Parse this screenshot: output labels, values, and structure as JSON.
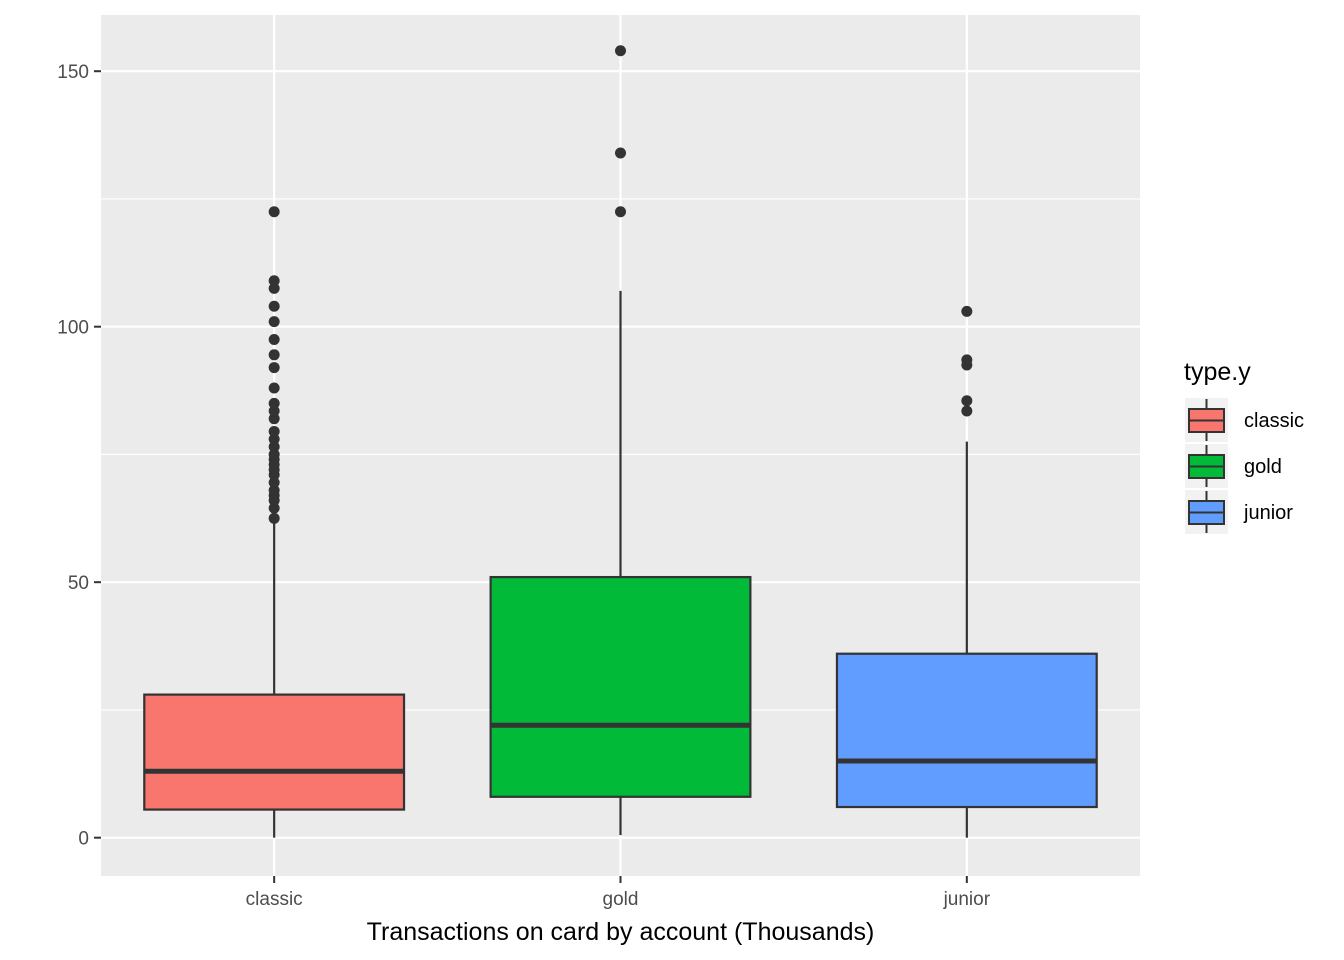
{
  "chart_data": {
    "type": "boxplot",
    "xlabel": "Transactions on card by account (Thousands)",
    "ylabel": "",
    "categories": [
      "classic",
      "gold",
      "junior"
    ],
    "ylim": [
      -7.5,
      161
    ],
    "yticks": [
      0,
      50,
      100,
      150
    ],
    "grid": true,
    "legend": {
      "title": "type.y",
      "placement": "right",
      "entries": [
        "classic",
        "gold",
        "junior"
      ]
    },
    "colors": {
      "classic": "#F8766D",
      "gold": "#00BA38",
      "junior": "#619CFF",
      "panel": "#EBEBEB",
      "box_outline": "#333333"
    },
    "series": [
      {
        "category": "classic",
        "min": 0,
        "q1": 5.5,
        "median": 13,
        "q3": 28,
        "max": 62,
        "outliers": [
          62.5,
          64.5,
          66,
          67,
          68,
          69.5,
          71,
          72,
          73,
          74,
          75,
          76.5,
          78,
          79.5,
          82,
          83.5,
          85,
          88,
          92,
          94.5,
          97.5,
          101,
          104,
          107.5,
          109,
          122.5
        ]
      },
      {
        "category": "gold",
        "min": 0.5,
        "q1": 8,
        "median": 22,
        "q3": 51,
        "max": 107,
        "outliers": [
          122.5,
          134,
          154
        ]
      },
      {
        "category": "junior",
        "min": 0,
        "q1": 6,
        "median": 15,
        "q3": 36,
        "max": 77.5,
        "outliers": [
          83.5,
          85.5,
          92.5,
          93.5,
          103
        ]
      }
    ]
  }
}
